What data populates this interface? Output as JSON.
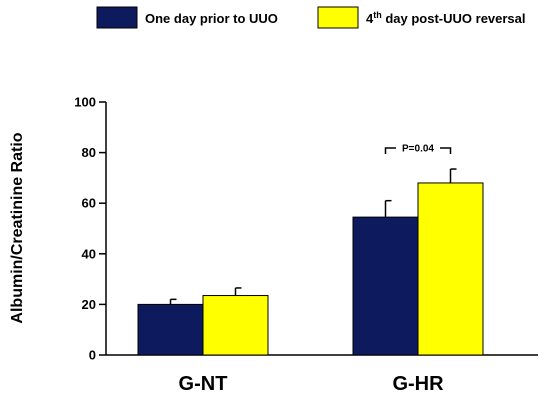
{
  "chart_data": {
    "type": "bar",
    "categories": [
      "G-NT",
      "G-HR"
    ],
    "series": [
      {
        "name": "One day prior to UUO",
        "color": "#0d1a5e",
        "values": [
          20,
          54.5
        ],
        "errors": [
          2,
          6.5
        ]
      },
      {
        "name": "4th day post-UUO reversal",
        "name_base": "4",
        "name_sup": "th",
        "name_rest": " day post-UUO reversal",
        "color": "#ffff00",
        "values": [
          23.5,
          68
        ],
        "errors": [
          3,
          5.5
        ]
      }
    ],
    "ylabel": "Albumin/Creatinine Ratio",
    "xlabel": "",
    "ylim": [
      0,
      100
    ],
    "yticks": [
      0,
      20,
      40,
      60,
      80,
      100
    ],
    "grid": false,
    "legend_position": "top",
    "annotations": [
      {
        "text": "P=0.04",
        "category": "G-HR"
      }
    ]
  }
}
